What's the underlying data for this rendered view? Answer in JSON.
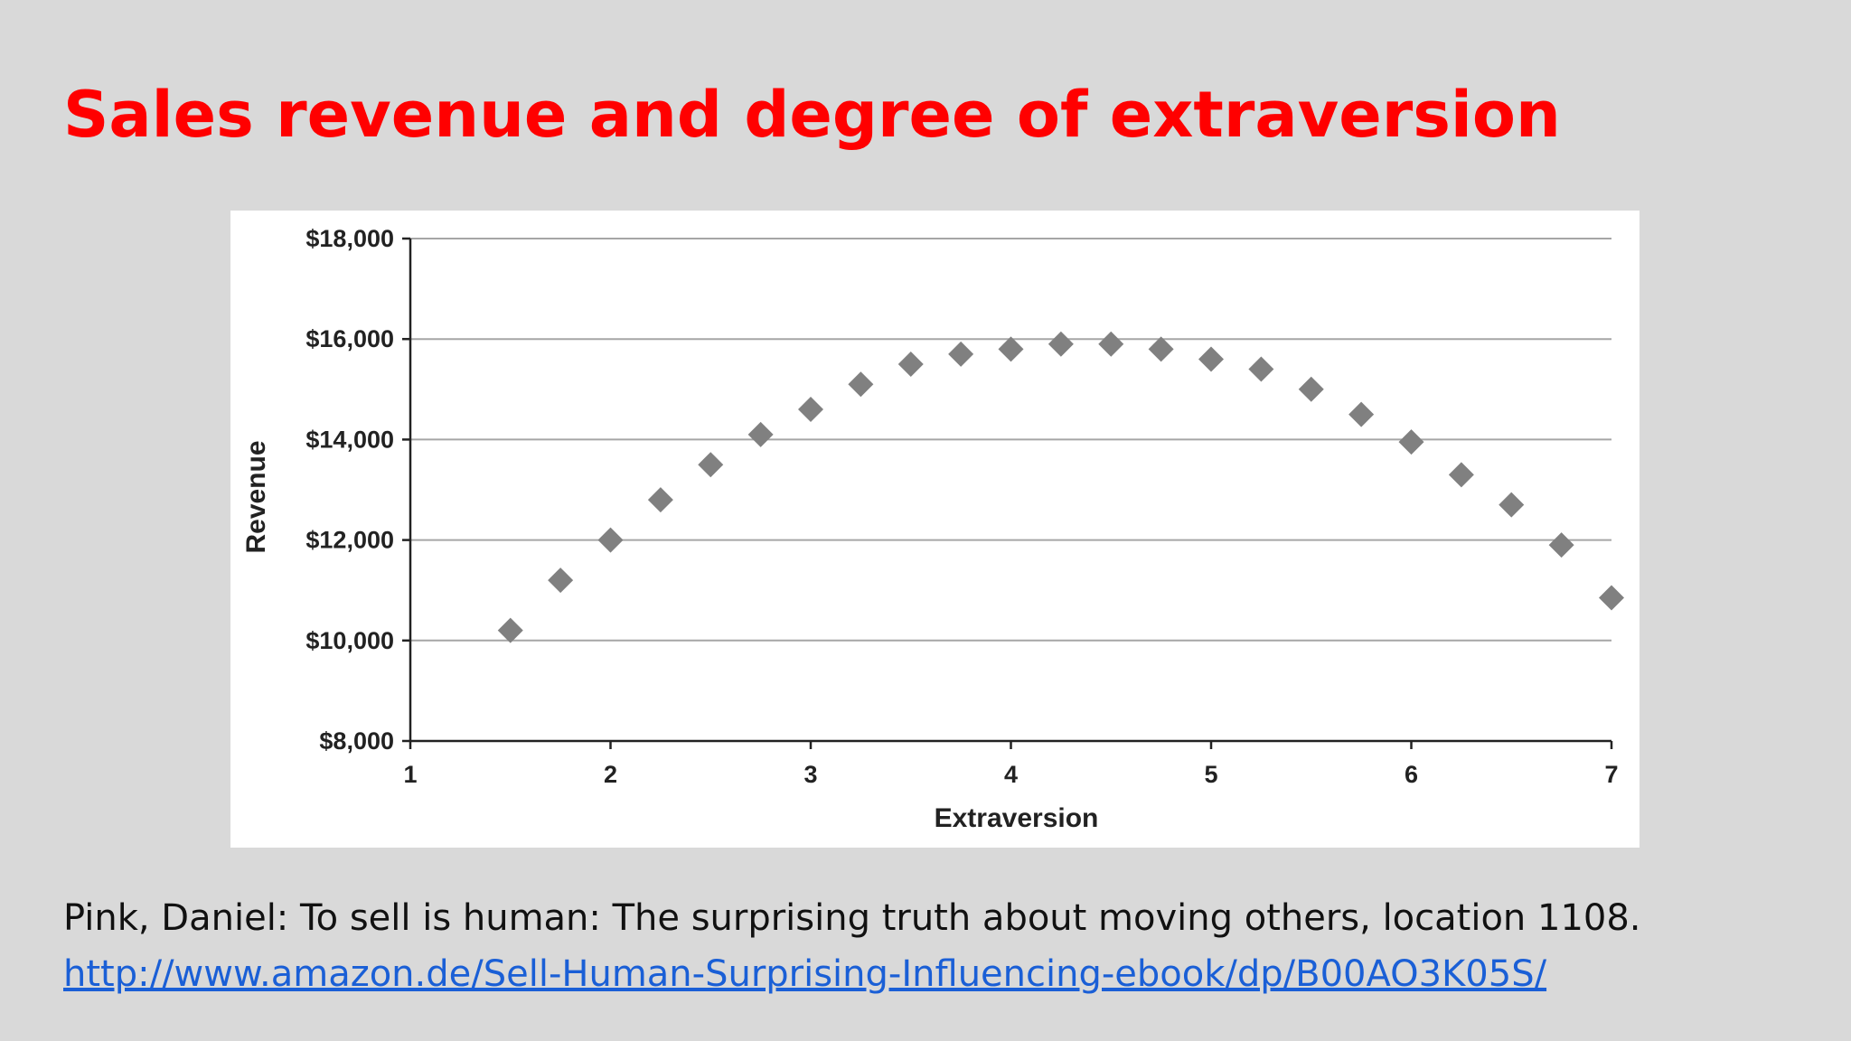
{
  "slide": {
    "title": "Sales revenue and degree of extraversion",
    "citation": "Pink, Daniel: To sell is human: The surprising truth about moving others, location 1108.",
    "link": "http://www.amazon.de/Sell-Human-Surprising-Influencing-ebook/dp/B00AO3K05S/"
  },
  "chart_data": {
    "type": "scatter",
    "xlabel": "Extraversion",
    "ylabel": "Revenue",
    "xlim": [
      1,
      7
    ],
    "ylim": [
      8000,
      18000
    ],
    "x_ticks": [
      1,
      2,
      3,
      4,
      5,
      6,
      7
    ],
    "y_ticks": [
      8000,
      10000,
      12000,
      14000,
      16000,
      18000
    ],
    "y_tick_labels": [
      "$8,000",
      "$10,000",
      "$12,000",
      "$14,000",
      "$16,000",
      "$18,000"
    ],
    "grid": "horizontal",
    "marker": "diamond",
    "marker_color": "#808080",
    "x": [
      1.5,
      1.75,
      2.0,
      2.25,
      2.5,
      2.75,
      3.0,
      3.25,
      3.5,
      3.75,
      4.0,
      4.25,
      4.5,
      4.75,
      5.0,
      5.25,
      5.5,
      5.75,
      6.0,
      6.25,
      6.5,
      6.75,
      7.0
    ],
    "y": [
      10200,
      11200,
      12000,
      12800,
      13500,
      14100,
      14600,
      15100,
      15500,
      15700,
      15800,
      15900,
      15900,
      15800,
      15600,
      15400,
      15000,
      14500,
      13950,
      13300,
      12700,
      11900,
      10850
    ]
  }
}
